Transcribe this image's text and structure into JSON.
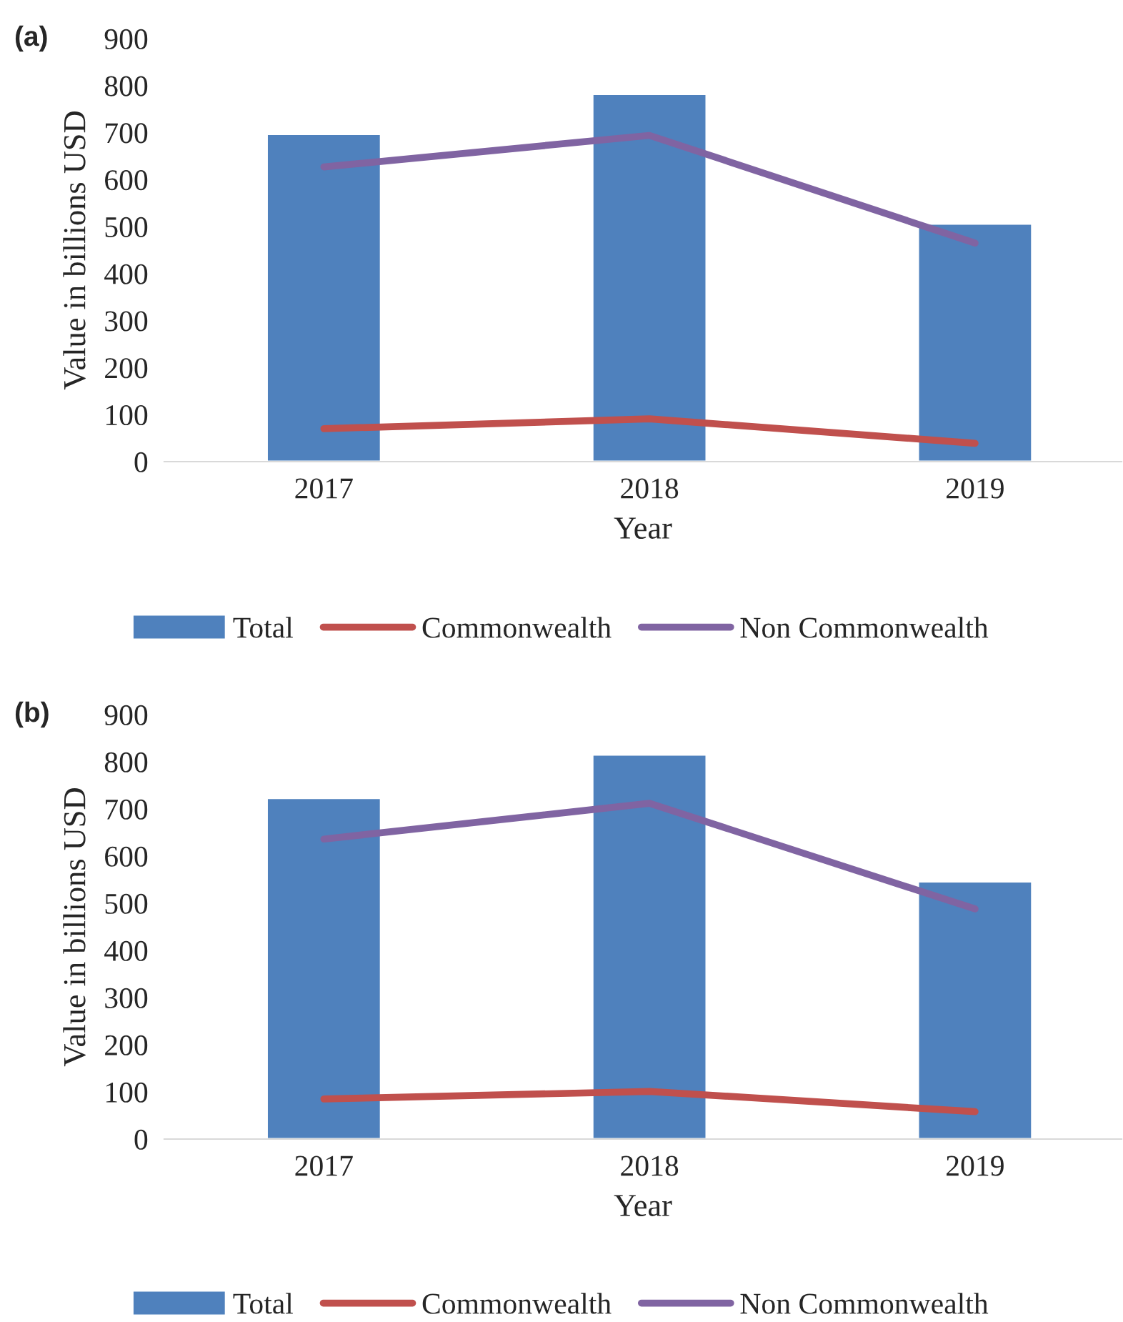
{
  "chart_data": [
    {
      "type": "bar",
      "title": "(a)",
      "xlabel": "Year",
      "ylabel": "Value in billions USD",
      "categories": [
        "2017",
        "2018",
        "2019"
      ],
      "ylim": [
        0,
        900
      ],
      "yticks": [
        0,
        100,
        200,
        300,
        400,
        500,
        600,
        700,
        800,
        900
      ],
      "grid": false,
      "legend": "bottom",
      "series": [
        {
          "name": "Total",
          "type": "bar",
          "color": "#4f81bd",
          "values": [
            697,
            782,
            506
          ]
        },
        {
          "name": "Commonwealth",
          "type": "line",
          "color": "#c0504d",
          "values": [
            70,
            91,
            39
          ]
        },
        {
          "name": "Non Commonwealth",
          "type": "line",
          "color": "#8064a2",
          "values": [
            627,
            694,
            465
          ]
        }
      ]
    },
    {
      "type": "bar",
      "title": "(b)",
      "xlabel": "Year",
      "ylabel": "Value in billions USD",
      "categories": [
        "2017",
        "2018",
        "2019"
      ],
      "ylim": [
        0,
        900
      ],
      "yticks": [
        0,
        100,
        200,
        300,
        400,
        500,
        600,
        700,
        800,
        900
      ],
      "grid": false,
      "legend": "bottom",
      "series": [
        {
          "name": "Total",
          "type": "bar",
          "color": "#4f81bd",
          "values": [
            723,
            815,
            546
          ]
        },
        {
          "name": "Commonwealth",
          "type": "line",
          "color": "#c0504d",
          "values": [
            85,
            101,
            58
          ]
        },
        {
          "name": "Non Commonwealth",
          "type": "line",
          "color": "#8064a2",
          "values": [
            636,
            712,
            488
          ]
        }
      ]
    }
  ]
}
